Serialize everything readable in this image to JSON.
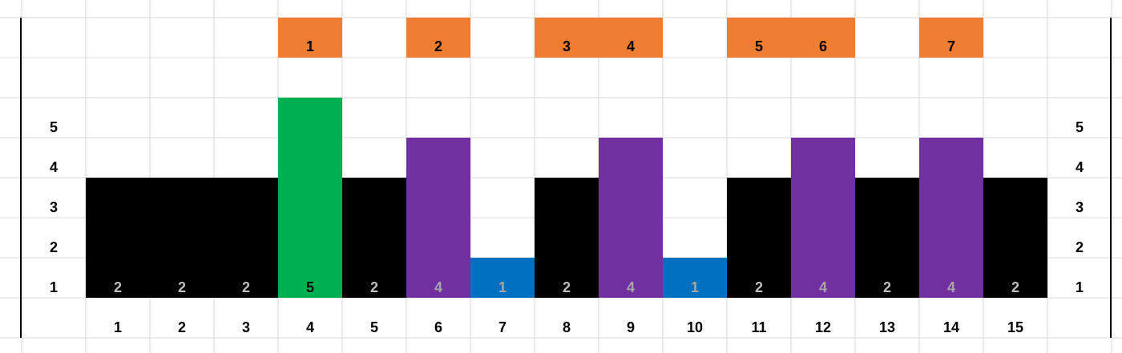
{
  "chart_data": {
    "type": "bar",
    "title": "",
    "xlabel": "",
    "ylabel": "",
    "ylim": [
      0,
      5
    ],
    "grid": true,
    "categories": [
      "1",
      "2",
      "3",
      "4",
      "5",
      "6",
      "7",
      "8",
      "9",
      "10",
      "11",
      "12",
      "13",
      "14",
      "15"
    ],
    "values": [
      2,
      2,
      2,
      5,
      2,
      4,
      1,
      2,
      4,
      1,
      2,
      4,
      2,
      4,
      2
    ],
    "bar_heights": [
      3,
      3,
      3,
      5,
      3,
      4,
      1,
      3,
      4,
      1,
      3,
      4,
      3,
      4,
      3
    ],
    "bar_colors": [
      "#000000",
      "#000000",
      "#000000",
      "#00B050",
      "#000000",
      "#7030A0",
      "#0070C0",
      "#000000",
      "#7030A0",
      "#0070C0",
      "#000000",
      "#7030A0",
      "#000000",
      "#7030A0",
      "#000000"
    ],
    "value_label_colors": [
      "#BFBFBF",
      "#BFBFBF",
      "#BFBFBF",
      "#000000",
      "#BFBFBF",
      "#A6A6A6",
      "#A6A6A6",
      "#BFBFBF",
      "#A6A6A6",
      "#A6A6A6",
      "#BFBFBF",
      "#A6A6A6",
      "#BFBFBF",
      "#A6A6A6",
      "#BFBFBF"
    ],
    "y_tick_labels": [
      "1",
      "2",
      "3",
      "4",
      "5"
    ],
    "top_markers": [
      {
        "column": "4",
        "label": "1"
      },
      {
        "column": "6",
        "label": "2"
      },
      {
        "column": "8",
        "label": "3"
      },
      {
        "column": "9",
        "label": "4"
      },
      {
        "column": "11",
        "label": "5"
      },
      {
        "column": "12",
        "label": "6"
      },
      {
        "column": "14",
        "label": "7"
      }
    ],
    "marker_color": "#ED7D31"
  }
}
